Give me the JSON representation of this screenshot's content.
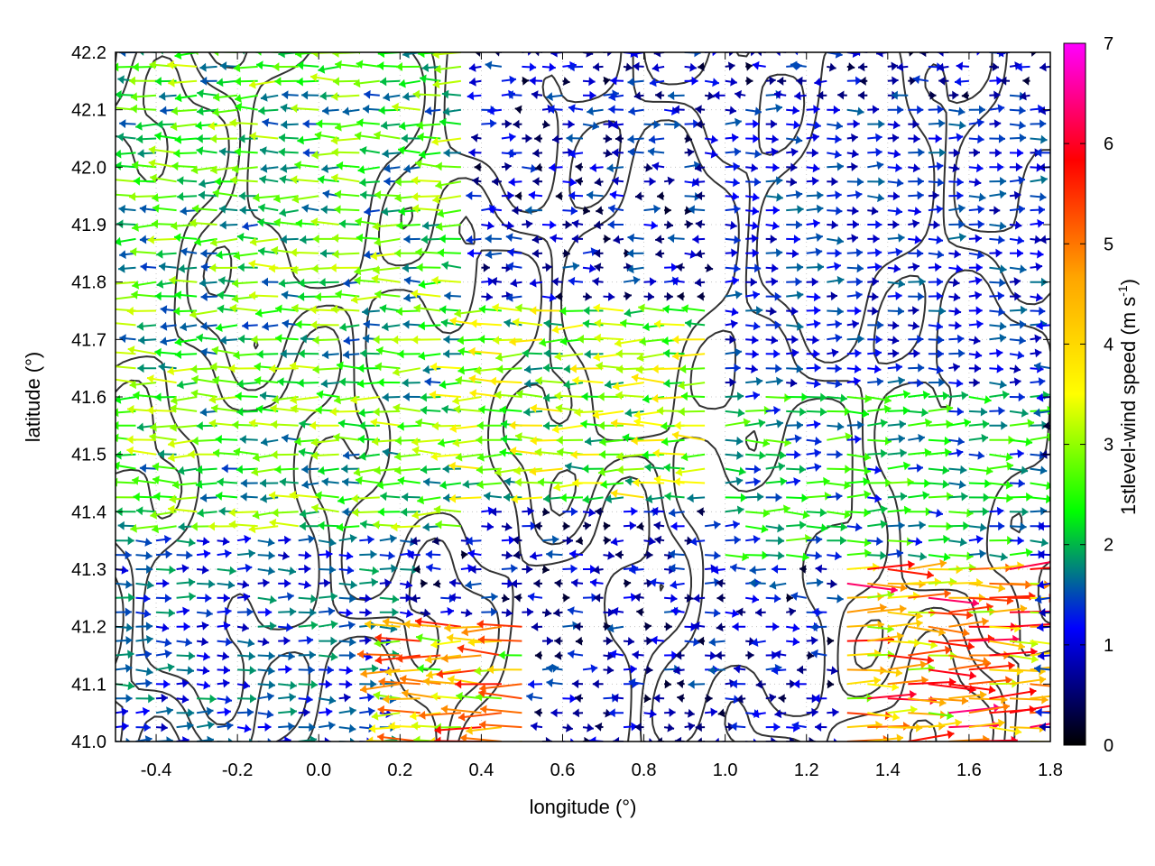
{
  "chart_data": {
    "type": "vector-field",
    "xlabel": "longitude (°)",
    "ylabel": "latitude (°)",
    "xlim": [
      -0.5,
      1.8
    ],
    "ylim": [
      41.0,
      42.2
    ],
    "xticks": [
      "-0.4",
      "-0.2",
      "0.0",
      "0.2",
      "0.4",
      "0.6",
      "0.8",
      "1.0",
      "1.2",
      "1.4",
      "1.6",
      "1.8"
    ],
    "xtick_values": [
      -0.4,
      -0.2,
      0.0,
      0.2,
      0.4,
      0.6,
      0.8,
      1.0,
      1.2,
      1.4,
      1.6,
      1.8
    ],
    "yticks": [
      "41.0",
      "41.1",
      "41.2",
      "41.3",
      "41.4",
      "41.5",
      "41.6",
      "41.7",
      "41.8",
      "41.9",
      "42.0",
      "42.1",
      "42.2"
    ],
    "ytick_values": [
      41.0,
      41.1,
      41.2,
      41.3,
      41.4,
      41.5,
      41.6,
      41.7,
      41.8,
      41.9,
      42.0,
      42.1,
      42.2
    ],
    "grid": true,
    "colorbar": {
      "label_prefix": "1stlevel-wind speed (m s",
      "label_sup": "-1",
      "label_suffix": ")",
      "range": [
        0,
        7
      ],
      "ticks": [
        "0",
        "1",
        "2",
        "3",
        "4",
        "5",
        "6",
        "7"
      ],
      "tick_values": [
        0,
        1,
        2,
        3,
        4,
        5,
        6,
        7
      ],
      "colors": [
        "#000000",
        "#0000ff",
        "#00ff00",
        "#ffff00",
        "#ffa500",
        "#ff0000",
        "#ff00ff"
      ]
    },
    "vector_regions": [
      {
        "lon": [
          -0.5,
          0.35
        ],
        "lat": [
          41.35,
          42.2
        ],
        "direction": "west",
        "speed": 2.6
      },
      {
        "lon": [
          -0.5,
          0.2
        ],
        "lat": [
          41.0,
          41.35
        ],
        "direction": "east",
        "speed": 1.5
      },
      {
        "lon": [
          0.3,
          1.0
        ],
        "lat": [
          41.4,
          41.75
        ],
        "direction": "west",
        "speed": 3.0
      },
      {
        "lon": [
          0.15,
          0.5
        ],
        "lat": [
          41.0,
          41.2
        ],
        "direction": "west",
        "speed": 4.5
      },
      {
        "lon": [
          1.0,
          1.8
        ],
        "lat": [
          41.6,
          42.1
        ],
        "direction": "east",
        "speed": 1.3
      },
      {
        "lon": [
          1.3,
          1.8
        ],
        "lat": [
          41.0,
          41.3
        ],
        "direction": "east",
        "speed": 5.0
      },
      {
        "lon": [
          1.0,
          1.8
        ],
        "lat": [
          41.3,
          41.6
        ],
        "direction": "east",
        "speed": 2.2
      }
    ]
  }
}
